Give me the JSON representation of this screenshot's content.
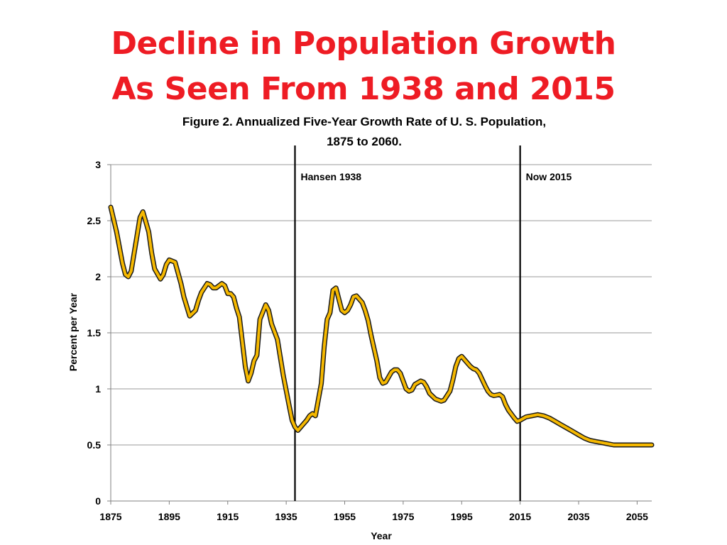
{
  "slide": {
    "title_line1": "Decline in Population Growth",
    "title_line2": "As Seen From 1938 and 2015"
  },
  "chart_data": {
    "type": "line",
    "title_line1": "Figure 2. Annualized Five-Year Growth Rate of U. S. Population,",
    "title_line2": "1875 to 2060.",
    "xlabel": "Year",
    "ylabel": "Percent per Year",
    "xlim": [
      1875,
      2060
    ],
    "ylim": [
      0,
      3
    ],
    "x_ticks": [
      1875,
      1895,
      1915,
      1935,
      1955,
      1975,
      1995,
      2015,
      2035,
      2055
    ],
    "y_ticks": [
      0,
      0.5,
      1,
      1.5,
      2,
      2.5,
      3
    ],
    "grid": "horizontal",
    "line_color": "#f5b800",
    "line_outline_color": "#1a1a1a",
    "series": [
      {
        "x": [
          1875,
          1877,
          1879,
          1880,
          1881,
          1882,
          1884,
          1885,
          1886,
          1888,
          1889,
          1890,
          1892,
          1893,
          1894,
          1895,
          1897,
          1899,
          1900,
          1902,
          1904,
          1905,
          1906,
          1908,
          1909,
          1910,
          1911,
          1913,
          1914,
          1915,
          1916,
          1917,
          1918,
          1919,
          1921,
          1922,
          1923,
          1924,
          1925,
          1926,
          1928,
          1929,
          1930,
          1932,
          1933,
          1934,
          1936,
          1937,
          1938,
          1939,
          1941,
          1942,
          1943,
          1944,
          1945,
          1947,
          1948,
          1949,
          1950,
          1951,
          1952,
          1954,
          1955,
          1956,
          1957,
          1958,
          1959,
          1961,
          1962,
          1963,
          1964,
          1966,
          1967,
          1968,
          1969,
          1971,
          1972,
          1973,
          1974,
          1976,
          1977,
          1978,
          1979,
          1981,
          1982,
          1983,
          1984,
          1986,
          1987,
          1988,
          1989,
          1991,
          1992,
          1993,
          1994,
          1995,
          1996,
          1998,
          1999,
          2000,
          2001,
          2003,
          2004,
          2005,
          2006,
          2008,
          2009,
          2010,
          2011,
          2013,
          2014,
          2015,
          2017,
          2019,
          2021,
          2023,
          2025,
          2027,
          2029,
          2031,
          2033,
          2035,
          2037,
          2039,
          2041,
          2043,
          2045,
          2047,
          2049,
          2050,
          2055,
          2060
        ],
        "y": [
          2.62,
          2.4,
          2.12,
          2.02,
          2.0,
          2.05,
          2.37,
          2.53,
          2.58,
          2.4,
          2.21,
          2.07,
          1.98,
          2.02,
          2.11,
          2.15,
          2.13,
          1.94,
          1.82,
          1.65,
          1.7,
          1.79,
          1.86,
          1.94,
          1.93,
          1.9,
          1.9,
          1.94,
          1.92,
          1.85,
          1.85,
          1.82,
          1.72,
          1.64,
          1.2,
          1.07,
          1.14,
          1.25,
          1.3,
          1.62,
          1.75,
          1.7,
          1.58,
          1.44,
          1.28,
          1.12,
          0.85,
          0.72,
          0.66,
          0.63,
          0.69,
          0.72,
          0.76,
          0.78,
          0.76,
          1.05,
          1.38,
          1.62,
          1.68,
          1.88,
          1.9,
          1.7,
          1.68,
          1.7,
          1.75,
          1.82,
          1.83,
          1.77,
          1.7,
          1.61,
          1.48,
          1.25,
          1.1,
          1.05,
          1.06,
          1.15,
          1.17,
          1.17,
          1.14,
          1.0,
          0.98,
          0.99,
          1.04,
          1.07,
          1.06,
          1.02,
          0.96,
          0.91,
          0.9,
          0.89,
          0.9,
          0.98,
          1.08,
          1.2,
          1.27,
          1.29,
          1.26,
          1.2,
          1.18,
          1.17,
          1.14,
          1.03,
          0.98,
          0.95,
          0.94,
          0.95,
          0.93,
          0.86,
          0.81,
          0.74,
          0.71,
          0.72,
          0.75,
          0.76,
          0.77,
          0.76,
          0.74,
          0.71,
          0.68,
          0.65,
          0.62,
          0.59,
          0.56,
          0.54,
          0.53,
          0.52,
          0.51,
          0.5,
          0.5,
          0.5,
          0.5,
          0.5
        ]
      }
    ],
    "annotations": [
      {
        "x": 1938,
        "label": "Hansen 1938"
      },
      {
        "x": 2015,
        "label": "Now 2015"
      }
    ]
  }
}
